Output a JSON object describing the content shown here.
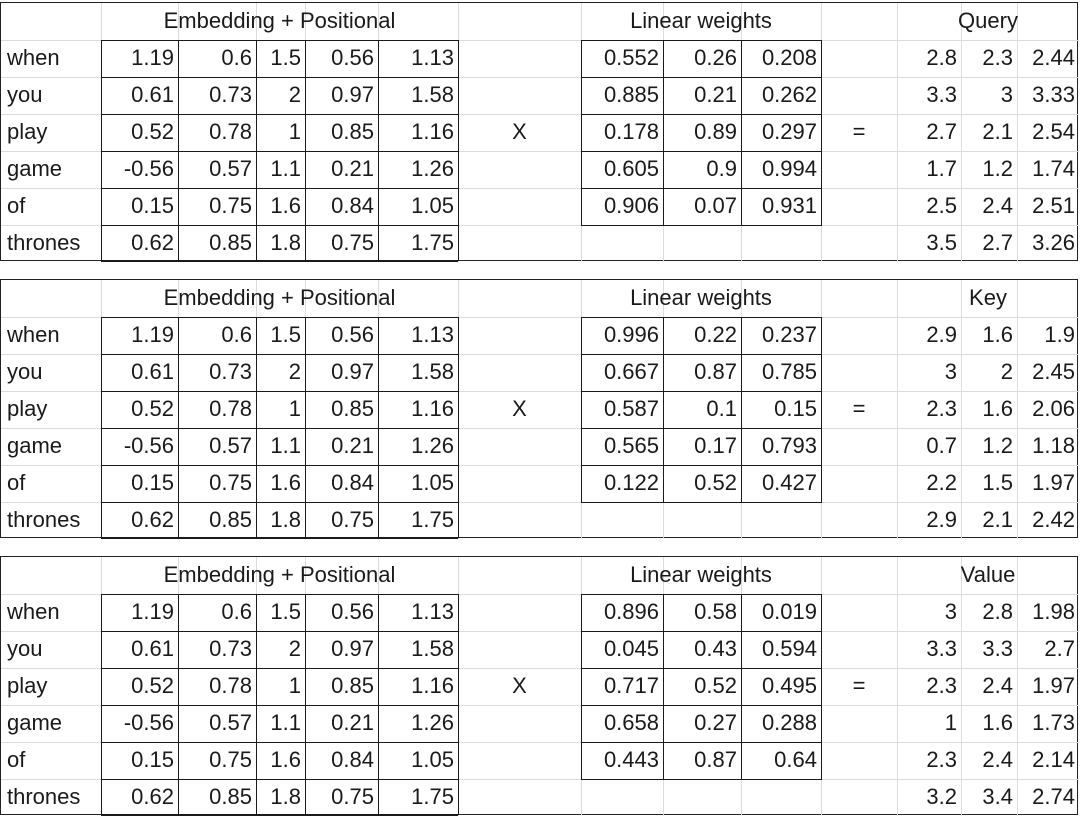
{
  "tokens": [
    "when",
    "you",
    "play",
    "game",
    "of",
    "thrones"
  ],
  "embedding_header": "Embedding + Positional",
  "weights_header": "Linear weights",
  "operator_multiply": "X",
  "operator_equals": "=",
  "embedding": [
    [
      "1.19",
      "0.6",
      "1.5",
      "0.56",
      "1.13"
    ],
    [
      "0.61",
      "0.73",
      "2",
      "0.97",
      "1.58"
    ],
    [
      "0.52",
      "0.78",
      "1",
      "0.85",
      "1.16"
    ],
    [
      "-0.56",
      "0.57",
      "1.1",
      "0.21",
      "1.26"
    ],
    [
      "0.15",
      "0.75",
      "1.6",
      "0.84",
      "1.05"
    ],
    [
      "0.62",
      "0.85",
      "1.8",
      "0.75",
      "1.75"
    ]
  ],
  "panels": [
    {
      "result_header": "Query",
      "weights": [
        [
          "0.552",
          "0.26",
          "0.208"
        ],
        [
          "0.885",
          "0.21",
          "0.262"
        ],
        [
          "0.178",
          "0.89",
          "0.297"
        ],
        [
          "0.605",
          "0.9",
          "0.994"
        ],
        [
          "0.906",
          "0.07",
          "0.931"
        ]
      ],
      "result": [
        [
          "2.8",
          "2.3",
          "2.44"
        ],
        [
          "3.3",
          "3",
          "3.33"
        ],
        [
          "2.7",
          "2.1",
          "2.54"
        ],
        [
          "1.7",
          "1.2",
          "1.74"
        ],
        [
          "2.5",
          "2.4",
          "2.51"
        ],
        [
          "3.5",
          "2.7",
          "3.26"
        ]
      ]
    },
    {
      "result_header": "Key",
      "weights": [
        [
          "0.996",
          "0.22",
          "0.237"
        ],
        [
          "0.667",
          "0.87",
          "0.785"
        ],
        [
          "0.587",
          "0.1",
          "0.15"
        ],
        [
          "0.565",
          "0.17",
          "0.793"
        ],
        [
          "0.122",
          "0.52",
          "0.427"
        ]
      ],
      "result": [
        [
          "2.9",
          "1.6",
          "1.9"
        ],
        [
          "3",
          "2",
          "2.45"
        ],
        [
          "2.3",
          "1.6",
          "2.06"
        ],
        [
          "0.7",
          "1.2",
          "1.18"
        ],
        [
          "2.2",
          "1.5",
          "1.97"
        ],
        [
          "2.9",
          "2.1",
          "2.42"
        ]
      ]
    },
    {
      "result_header": "Value",
      "weights": [
        [
          "0.896",
          "0.58",
          "0.019"
        ],
        [
          "0.045",
          "0.43",
          "0.594"
        ],
        [
          "0.717",
          "0.52",
          "0.495"
        ],
        [
          "0.658",
          "0.27",
          "0.288"
        ],
        [
          "0.443",
          "0.87",
          "0.64"
        ]
      ],
      "result": [
        [
          "3",
          "2.8",
          "1.98"
        ],
        [
          "3.3",
          "3.3",
          "2.7"
        ],
        [
          "2.3",
          "2.4",
          "1.97"
        ],
        [
          "1",
          "1.6",
          "1.73"
        ],
        [
          "2.3",
          "2.4",
          "2.14"
        ],
        [
          "3.2",
          "3.4",
          "2.74"
        ]
      ]
    }
  ]
}
